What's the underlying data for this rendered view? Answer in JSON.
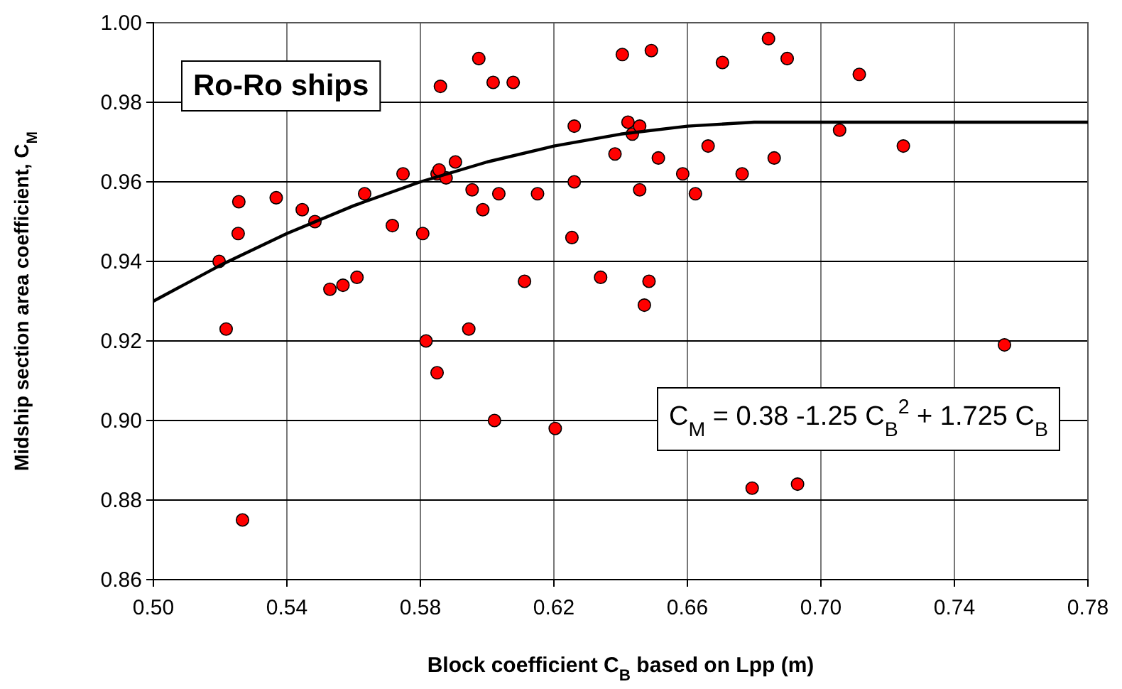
{
  "chart_data": {
    "type": "scatter",
    "xlabel": "Block coefficient C$_{B}$ based on Lpp (m)",
    "ylabel": "Midship section area coefficient, C$_{M}$",
    "xlim": [
      0.5,
      0.78
    ],
    "xticks": [
      {
        "value": 0.5,
        "label": "0.50"
      },
      0.54,
      0.58,
      0.62,
      0.66,
      {
        "value": 0.7,
        "label": "0.70"
      },
      0.74,
      0.78
    ],
    "ylim": [
      0.86,
      1.0
    ],
    "yticks": [
      0.86,
      0.88,
      {
        "value": 0.9,
        "label": "0.90"
      },
      0.92,
      0.94,
      0.96,
      0.98,
      {
        "value": 1.0,
        "label": "1.00"
      }
    ],
    "grid": true,
    "annotations": [
      "Ro-Ro ships",
      "C$_{M}$ = 0.38 -1.25 C$_{B}$$^{2}$ + 1.725 C$_{B}$"
    ],
    "series": [
      {
        "color": "#ff0000",
        "marker": "circle",
        "x": [
          0.586,
          0.5905,
          0.5748,
          0.585,
          0.5877,
          0.5856,
          0.5256,
          0.5368,
          0.5446,
          0.5484,
          0.5633,
          0.5254,
          0.5716,
          0.5807,
          0.5197,
          0.5529,
          0.5568,
          0.561,
          0.5218,
          0.5817,
          0.585,
          0.5267,
          0.5945,
          0.5975,
          0.6018,
          0.6078,
          0.6405,
          0.6492,
          0.6705,
          0.6843,
          0.5955,
          0.5987,
          0.6035,
          0.6151,
          0.6261,
          0.6261,
          0.6254,
          0.6383,
          0.6422,
          0.6435,
          0.6457,
          0.6513,
          0.6457,
          0.6586,
          0.6624,
          0.6662,
          0.6764,
          0.686,
          0.6112,
          0.634,
          0.6485,
          0.6471,
          0.6022,
          0.6204,
          0.6794,
          0.6899,
          0.7115,
          0.7056,
          0.7247,
          0.755,
          0.693
        ],
        "values": [
          0.984,
          0.965,
          0.962,
          0.962,
          0.961,
          0.963,
          0.955,
          0.956,
          0.953,
          0.95,
          0.957,
          0.947,
          0.949,
          0.947,
          0.94,
          0.933,
          0.934,
          0.936,
          0.923,
          0.92,
          0.912,
          0.875,
          0.923,
          0.991,
          0.985,
          0.985,
          0.992,
          0.993,
          0.99,
          0.996,
          0.958,
          0.953,
          0.957,
          0.957,
          0.974,
          0.96,
          0.946,
          0.967,
          0.975,
          0.972,
          0.974,
          0.966,
          0.958,
          0.962,
          0.957,
          0.969,
          0.962,
          0.966,
          0.935,
          0.936,
          0.935,
          0.929,
          0.9,
          0.898,
          0.883,
          0.991,
          0.987,
          0.973,
          0.969,
          0.919,
          0.884
        ]
      },
      {
        "type": "line",
        "color": "#000000",
        "x": [
          0.5,
          0.52,
          0.54,
          0.56,
          0.58,
          0.6,
          0.62,
          0.64,
          0.66,
          0.68,
          0.69,
          0.78
        ],
        "values": [
          0.93,
          0.939,
          0.947,
          0.954,
          0.96,
          0.965,
          0.969,
          0.972,
          0.974,
          0.975,
          0.975,
          0.975
        ]
      }
    ]
  }
}
